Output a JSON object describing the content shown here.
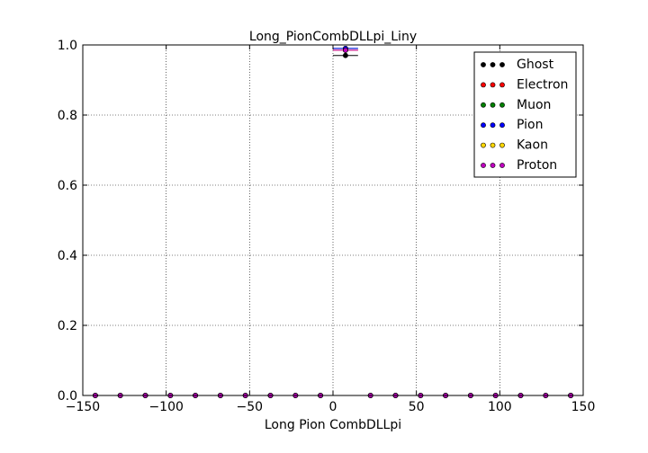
{
  "chart_data": {
    "type": "scatter",
    "title": "Long_PionCombDLLpi_Liny",
    "xlabel": "Long Pion CombDLLpi",
    "ylabel": "",
    "xlim": [
      -150,
      150
    ],
    "ylim": [
      0.0,
      1.0
    ],
    "xticks": [
      -150,
      -100,
      -50,
      0,
      50,
      100,
      150
    ],
    "xtick_labels": [
      "−150",
      "−100",
      "−50",
      "0",
      "50",
      "100",
      "150"
    ],
    "yticks": [
      0.0,
      0.2,
      0.4,
      0.6,
      0.8,
      1.0
    ],
    "ytick_labels": [
      "0.0",
      "0.2",
      "0.4",
      "0.6",
      "0.8",
      "1.0"
    ],
    "grid": true,
    "legend_position": "top-right",
    "bin_centers": [
      -142.5,
      -127.5,
      -112.5,
      -97.5,
      -82.5,
      -67.5,
      -52.5,
      -37.5,
      -22.5,
      -7.5,
      7.5,
      22.5,
      37.5,
      52.5,
      67.5,
      82.5,
      97.5,
      112.5,
      127.5,
      142.5
    ],
    "x_error_half_width": 7.5,
    "series": [
      {
        "name": "Ghost",
        "color": "#000000",
        "values": [
          0,
          0,
          0,
          0,
          0,
          0,
          0,
          0,
          0,
          0,
          0.97,
          0,
          0,
          0,
          0,
          0,
          0,
          0,
          0,
          0
        ]
      },
      {
        "name": "Electron",
        "color": "#ff0000",
        "values": [
          0,
          0,
          0,
          0,
          0,
          0,
          0,
          0,
          0,
          0,
          0.985,
          0,
          0,
          0,
          0,
          0,
          0,
          0,
          0,
          0
        ]
      },
      {
        "name": "Muon",
        "color": "#008000",
        "values": [
          0,
          0,
          0,
          0,
          0,
          0,
          0,
          0,
          0,
          0,
          0.99,
          0,
          0,
          0,
          0,
          0,
          0,
          0,
          0,
          0
        ]
      },
      {
        "name": "Pion",
        "color": "#0000ff",
        "values": [
          0,
          0,
          0,
          0,
          0,
          0,
          0,
          0,
          0,
          0,
          0.99,
          0,
          0,
          0,
          0,
          0,
          0,
          0,
          0,
          0
        ]
      },
      {
        "name": "Kaon",
        "color": "#ffd700",
        "values": [
          0,
          0,
          0,
          0,
          0,
          0,
          0,
          0,
          0,
          0,
          0.985,
          0,
          0,
          0,
          0,
          0,
          0,
          0,
          0,
          0
        ]
      },
      {
        "name": "Proton",
        "color": "#bf00bf",
        "values": [
          0,
          0,
          0,
          0,
          0,
          0,
          0,
          0,
          0,
          0,
          0.985,
          0,
          0,
          0,
          0,
          0,
          0,
          0,
          0,
          0
        ]
      }
    ]
  }
}
